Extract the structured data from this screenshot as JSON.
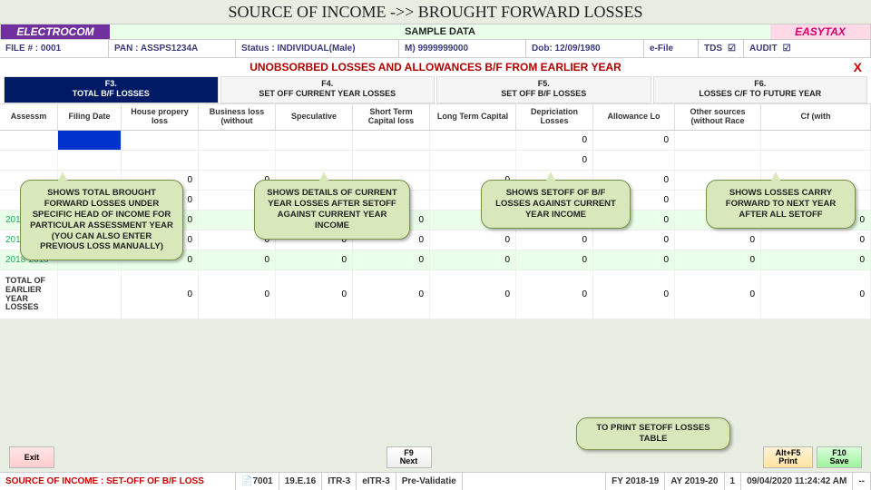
{
  "title": "SOURCE OF INCOME ->> BROUGHT FORWARD LOSSES",
  "brand_left": "ELECTROCOM",
  "sample_label": "SAMPLE DATA",
  "brand_right": "EASYTAX",
  "info": {
    "file": "FILE # : 0001",
    "pan": "PAN : ASSPS1234A",
    "status": "Status : INDIVIDUAL(Male)",
    "mobile": "M) 9999999000",
    "dob": "Dob: 12/09/1980",
    "efile": "e-File",
    "tds": "TDS",
    "audit": "AUDIT"
  },
  "header_strip": "UNOBSORBED LOSSES AND ALLOWANCES B/F FROM EARLIER YEAR",
  "close_x": "X",
  "tabs": [
    {
      "line1": "F3.",
      "line2": "TOTAL B/F LOSSES",
      "active": true
    },
    {
      "line1": "F4.",
      "line2": "SET OFF CURRENT YEAR LOSSES",
      "active": false
    },
    {
      "line1": "F5.",
      "line2": "SET OFF B/F LOSSES",
      "active": false
    },
    {
      "line1": "F6.",
      "line2": "LOSSES C/F TO FUTURE YEAR",
      "active": false
    }
  ],
  "columns": [
    "Assessm",
    "Filing Date",
    "House propery loss",
    "Business loss (without",
    "Speculative",
    "Short Term Capital loss",
    "Long Term Capital",
    "Depriciation Losses",
    "Allowance Lo",
    "Other sources (without Race",
    "Cf (with"
  ],
  "rows": [
    {
      "year": "",
      "cells": [
        "",
        "",
        "",
        "",
        "",
        "",
        "0",
        "0",
        "",
        ""
      ],
      "blue": true
    },
    {
      "year": "",
      "cells": [
        "",
        "",
        "",
        "",
        "",
        "",
        "0",
        "",
        "",
        ""
      ]
    },
    {
      "year": "",
      "cells": [
        "",
        "0",
        "0",
        "",
        "",
        "0",
        "",
        "0",
        "",
        ""
      ]
    },
    {
      "year": "",
      "cells": [
        "",
        "0",
        "0",
        "",
        "",
        "0",
        "",
        "0",
        "",
        ""
      ]
    },
    {
      "year": "2016-2017",
      "cells": [
        "",
        "0",
        "0",
        "0",
        "0",
        "0",
        "0",
        "0",
        "0",
        "0"
      ]
    },
    {
      "year": "2017-2018",
      "cells": [
        "",
        "0",
        "0",
        "0",
        "0",
        "0",
        "0",
        "0",
        "0",
        "0"
      ]
    },
    {
      "year": "2018-2019",
      "cells": [
        "",
        "0",
        "0",
        "0",
        "0",
        "0",
        "0",
        "0",
        "0",
        "0"
      ]
    }
  ],
  "total_label": "TOTAL OF\nEARLIER\nYEAR\nLOSSES",
  "total_cells": [
    "",
    "0",
    "0",
    "0",
    "0",
    "0",
    "0",
    "0",
    "0",
    "0"
  ],
  "callouts": {
    "c1": "SHOWS TOTAL BROUGHT FORWARD LOSSES UNDER SPECIFIC HEAD OF INCOME FOR PARTICULAR ASSESSMENT YEAR (YOU CAN ALSO ENTER PREVIOUS LOSS MANUALLY)",
    "c2": "SHOWS DETAILS OF CURRENT YEAR LOSSES AFTER SETOFF AGAINST CURRENT YEAR INCOME",
    "c3": "SHOWS SETOFF OF B/F LOSSES AGAINST CURRENT YEAR INCOME",
    "c4": "SHOWS LOSSES CARRY FORWARD TO NEXT YEAR AFTER ALL SETOFF",
    "c5": "TO PRINT SETOFF LOSSES TABLE"
  },
  "footer": {
    "exit": "Exit",
    "next1": "F9",
    "next2": "Next",
    "print1": "Alt+F5",
    "print2": "Print",
    "save1": "F10",
    "save2": "Save"
  },
  "status": {
    "s1": "SOURCE OF INCOME : SET-OFF OF B/F LOSS",
    "s2": "7001",
    "s3": "19.E.16",
    "s4": "ITR-3",
    "s5": "eITR-3",
    "s6": "Pre-Validatie",
    "s7": "FY 2018-19",
    "s8": "AY 2019-20",
    "s9": "1",
    "s10": "09/04/2020 11:24:42 AM",
    "s11": "--"
  }
}
